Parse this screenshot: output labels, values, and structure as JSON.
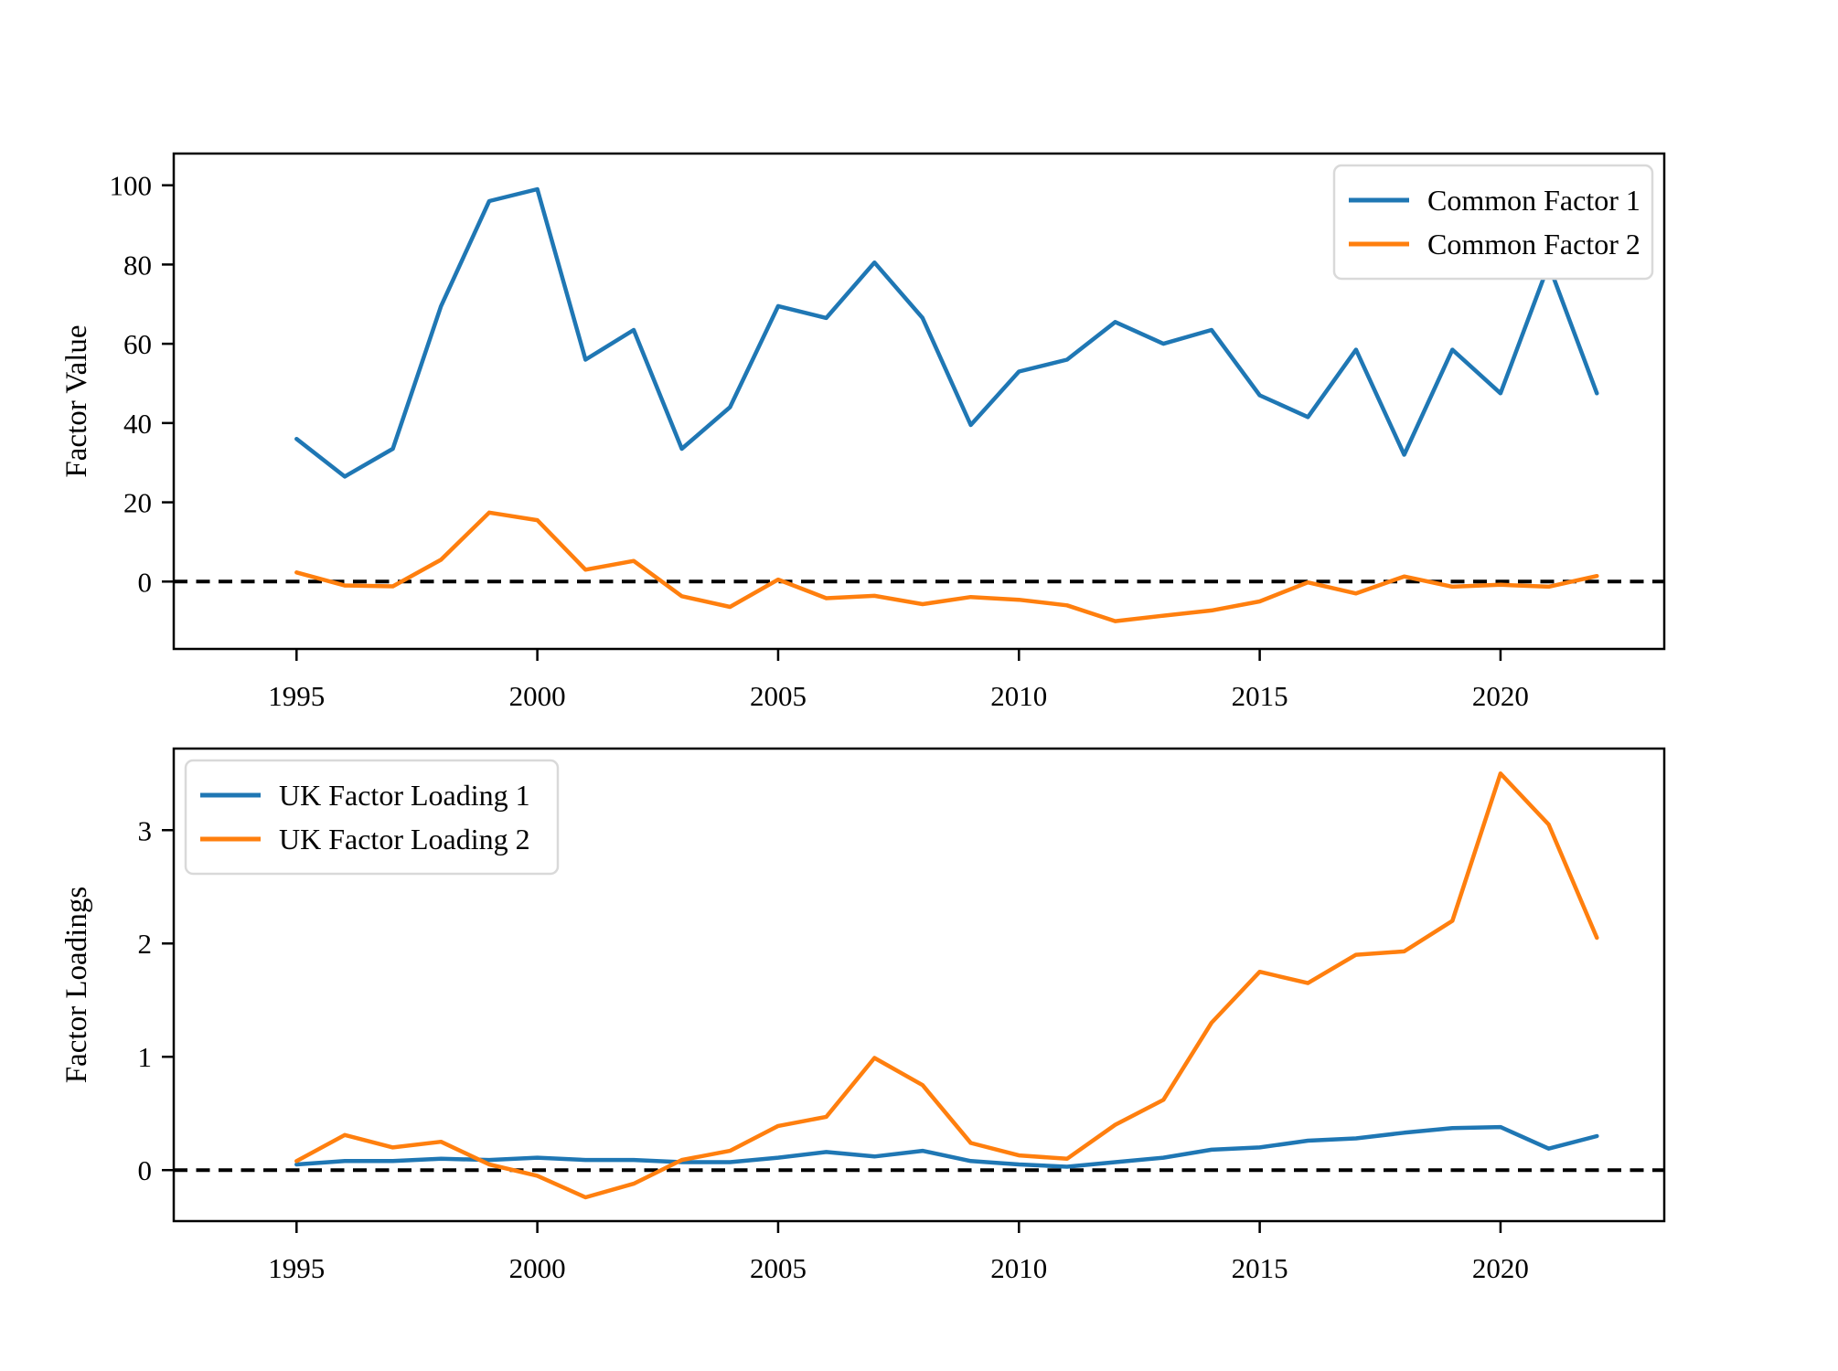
{
  "figure": {
    "background": "#ffffff",
    "text_color": "#000000",
    "spine_color": "#000000",
    "legend_border_color": "#d9d9d9",
    "legend_background": "#ffffff"
  },
  "chart_data": [
    {
      "type": "line",
      "panel": "top",
      "title": "",
      "xlabel": "",
      "ylabel": "Factor Value",
      "grid": false,
      "zero_reference_line": {
        "shown": true,
        "style": "dashed",
        "color": "#000000"
      },
      "legend_position": "upper right",
      "xlim": [
        1992.45,
        2023.4
      ],
      "ylim": [
        -17,
        108
      ],
      "xticks": [
        1995,
        2000,
        2005,
        2010,
        2015,
        2020
      ],
      "yticks": [
        0,
        20,
        40,
        60,
        80,
        100
      ],
      "x": [
        1995,
        1996,
        1997,
        1998,
        1999,
        2000,
        2001,
        2002,
        2003,
        2004,
        2005,
        2006,
        2007,
        2008,
        2009,
        2010,
        2011,
        2012,
        2013,
        2014,
        2015,
        2016,
        2017,
        2018,
        2019,
        2020,
        2021,
        2022
      ],
      "series": [
        {
          "name": "Common Factor 1",
          "color": "#1f77b4",
          "values": [
            36,
            26.5,
            33.5,
            69.5,
            96,
            99,
            56,
            63.5,
            33.5,
            44,
            69.5,
            66.5,
            80.5,
            66.5,
            39.5,
            53,
            56,
            65.5,
            60,
            63.5,
            47,
            41.5,
            58.5,
            32,
            58.5,
            47.5,
            80,
            47.5
          ]
        },
        {
          "name": "Common Factor 2",
          "color": "#ff7f0e",
          "values": [
            2.3,
            -1,
            -1.2,
            5.5,
            17.4,
            15.5,
            3,
            5.2,
            -3.7,
            -6.4,
            0.5,
            -4.2,
            -3.6,
            -5.7,
            -3.9,
            -4.6,
            -6,
            -10,
            -8.6,
            -7.3,
            -5,
            -0.2,
            -3,
            1.3,
            -1.3,
            -0.8,
            -1.3,
            1.4
          ]
        }
      ]
    },
    {
      "type": "line",
      "panel": "bottom",
      "title": "",
      "xlabel": "",
      "ylabel": "Factor Loadings",
      "grid": false,
      "zero_reference_line": {
        "shown": true,
        "style": "dashed",
        "color": "#000000"
      },
      "legend_position": "upper left",
      "xlim": [
        1992.45,
        2023.4
      ],
      "ylim": [
        -0.45,
        3.72
      ],
      "xticks": [
        1995,
        2000,
        2005,
        2010,
        2015,
        2020
      ],
      "yticks": [
        0,
        1,
        2,
        3
      ],
      "x": [
        1995,
        1996,
        1997,
        1998,
        1999,
        2000,
        2001,
        2002,
        2003,
        2004,
        2005,
        2006,
        2007,
        2008,
        2009,
        2010,
        2011,
        2012,
        2013,
        2014,
        2015,
        2016,
        2017,
        2018,
        2019,
        2020,
        2021,
        2022
      ],
      "series": [
        {
          "name": "UK Factor Loading 1",
          "color": "#1f77b4",
          "values": [
            0.05,
            0.08,
            0.08,
            0.1,
            0.09,
            0.11,
            0.09,
            0.09,
            0.07,
            0.07,
            0.11,
            0.16,
            0.12,
            0.17,
            0.08,
            0.05,
            0.03,
            0.07,
            0.11,
            0.18,
            0.2,
            0.26,
            0.28,
            0.33,
            0.37,
            0.38,
            0.19,
            0.3
          ]
        },
        {
          "name": "UK Factor Loading 2",
          "color": "#ff7f0e",
          "values": [
            0.08,
            0.31,
            0.2,
            0.25,
            0.05,
            -0.05,
            -0.24,
            -0.12,
            0.09,
            0.17,
            0.39,
            0.47,
            0.99,
            0.75,
            0.24,
            0.13,
            0.1,
            0.4,
            0.62,
            1.3,
            1.75,
            1.65,
            1.9,
            1.93,
            2.2,
            3.5,
            3.05,
            2.05
          ]
        }
      ]
    }
  ]
}
